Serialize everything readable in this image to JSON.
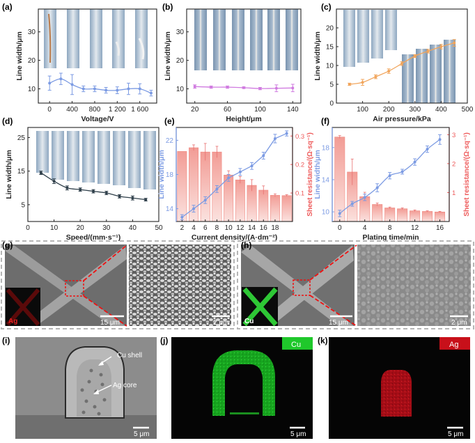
{
  "panels": {
    "a": {
      "label": "(a)"
    },
    "b": {
      "label": "(b)"
    },
    "c": {
      "label": "(c)"
    },
    "d": {
      "label": "(d)"
    },
    "e": {
      "label": "(e)"
    },
    "f": {
      "label": "(f)"
    },
    "g": {
      "label": "(g)",
      "element_tag": "Ag",
      "scale1": "15 μm",
      "scale2": "2 μm"
    },
    "h": {
      "label": "(h)",
      "element_tag": "Cu",
      "scale1": "15 μm",
      "scale2": "2 μm"
    },
    "i": {
      "label": "(i)",
      "cu_shell": "Cu shell",
      "ag_core": "Ag core",
      "scale": "5 μm"
    },
    "j": {
      "label": "(j)",
      "tag": "Cu",
      "scale": "5 μm"
    },
    "k": {
      "label": "(k)",
      "tag": "Ag",
      "scale": "5 μm"
    }
  },
  "colors": {
    "cu_green": "#1fc82b",
    "ag_red": "#c8101a",
    "blue_series": "#7c9be3",
    "red_axis": "#ee5a5a",
    "bar_fill": "#f5b2ac",
    "purple_series": "#d07be0",
    "orange_series": "#f1a55c",
    "dark_series": "#2f3f4a"
  },
  "chart_data": [
    {
      "id": "a",
      "type": "line",
      "xlabel": "Voltage/V",
      "ylabel": "Line width/μm",
      "xlim": [
        -200,
        1900
      ],
      "ylim": [
        5,
        38
      ],
      "xticks": [
        0,
        400,
        800,
        1200,
        1600
      ],
      "xtick_labels": [
        "0",
        "400",
        "800",
        "1 200",
        "1 600"
      ],
      "yticks": [
        10,
        20,
        30
      ],
      "x": [
        0,
        200,
        400,
        600,
        800,
        1000,
        1200,
        1400,
        1600,
        1800
      ],
      "values": [
        12.0,
        13.5,
        11.5,
        10.0,
        10.0,
        9.5,
        9.5,
        10.0,
        10.0,
        8.5
      ],
      "errors": [
        2.5,
        2.0,
        3.5,
        1.0,
        1.0,
        1.0,
        1.2,
        2.0,
        1.8,
        1.0
      ]
    },
    {
      "id": "b",
      "type": "line",
      "xlabel": "Height/μm",
      "ylabel": "Line width/μm",
      "xlim": [
        10,
        150
      ],
      "ylim": [
        5,
        38
      ],
      "xticks": [
        20,
        60,
        100,
        140
      ],
      "xtick_labels": [
        "20",
        "60",
        "100",
        "140"
      ],
      "yticks": [
        10,
        20,
        30
      ],
      "x": [
        20,
        40,
        60,
        80,
        100,
        120,
        140
      ],
      "values": [
        10.8,
        10.6,
        10.6,
        10.4,
        10.1,
        10.2,
        10.3
      ],
      "errors": [
        0.6,
        0.4,
        0.4,
        0.3,
        0.4,
        1.2,
        1.3
      ]
    },
    {
      "id": "c",
      "type": "line",
      "xlabel": "Air pressure/kPa",
      "ylabel": "Line width/μm",
      "xlim": [
        0,
        500
      ],
      "ylim": [
        0,
        25
      ],
      "xticks": [
        100,
        200,
        300,
        400,
        500
      ],
      "xtick_labels": [
        "100",
        "200",
        "300",
        "400",
        "500"
      ],
      "yticks": [
        0,
        5,
        10,
        15,
        20
      ],
      "x": [
        50,
        100,
        150,
        200,
        250,
        300,
        350,
        400,
        450
      ],
      "values": [
        5.0,
        5.5,
        7.0,
        8.5,
        10.5,
        12.5,
        13.8,
        15.0,
        16.0
      ],
      "errors": [
        0.3,
        0.8,
        0.5,
        0.6,
        0.5,
        0.4,
        0.5,
        0.6,
        0.9
      ]
    },
    {
      "id": "d",
      "type": "line",
      "xlabel": "Speed/(mm·s⁻¹)",
      "ylabel": "Line width/μm",
      "xlim": [
        0,
        50
      ],
      "ylim": [
        0,
        28
      ],
      "xticks": [
        0,
        10,
        20,
        30,
        40,
        50
      ],
      "xtick_labels": [
        "0",
        "10",
        "20",
        "30",
        "40",
        "50"
      ],
      "yticks": [
        5,
        15,
        25
      ],
      "x": [
        5,
        10,
        15,
        20,
        25,
        30,
        35,
        40,
        45
      ],
      "values": [
        14.5,
        12.0,
        10.0,
        9.5,
        9.0,
        8.5,
        7.5,
        7.0,
        6.5
      ],
      "errors": [
        0.5,
        0.7,
        0.6,
        0.5,
        0.5,
        0.5,
        0.5,
        0.6,
        0.4
      ]
    },
    {
      "id": "e",
      "type": "bar+line",
      "xlabel": "Current density/(A·dm⁻²)",
      "ylabel": "Line width/μm",
      "y2label": "Sheet resistance/(Ω·sq⁻¹)",
      "xlim": [
        1,
        21
      ],
      "ylim": [
        12.5,
        23.5
      ],
      "y2lim": [
        0,
        0.33
      ],
      "xticks": [
        2,
        4,
        6,
        8,
        10,
        12,
        14,
        16,
        18
      ],
      "xtick_labels": [
        "2",
        "4",
        "6",
        "8",
        "10",
        "12",
        "14",
        "16",
        "18"
      ],
      "yticks": [
        14,
        18,
        22
      ],
      "y2ticks": [
        0.1,
        0.2,
        0.3
      ],
      "x": [
        2,
        4,
        6,
        8,
        10,
        12,
        14,
        16,
        18,
        20
      ],
      "values": [
        13.0,
        14.0,
        15.0,
        16.3,
        17.6,
        18.3,
        19.0,
        20.2,
        22.2,
        22.8
      ],
      "errors": [
        0.3,
        0.4,
        0.4,
        0.4,
        0.4,
        0.4,
        0.4,
        0.4,
        0.5,
        0.3
      ],
      "bars": [
        0.246,
        0.259,
        0.244,
        0.244,
        0.163,
        0.146,
        0.127,
        0.11,
        0.092,
        0.091
      ],
      "bar_errors": [
        0.0,
        0.01,
        0.03,
        0.02,
        0.015,
        0.012,
        0.02,
        0.015,
        0.005,
        0.003
      ]
    },
    {
      "id": "f",
      "type": "bar+line",
      "xlabel": "Plating time/min",
      "ylabel": "Line width/μm",
      "y2label": "Sheet resistance/(Ω·sq⁻¹)",
      "xlim": [
        -1.2,
        17.5
      ],
      "ylim": [
        8.8,
        20.5
      ],
      "y2lim": [
        0,
        3.25
      ],
      "xticks": [
        0,
        4,
        8,
        12,
        16
      ],
      "xtick_labels": [
        "0",
        "4",
        "8",
        "12",
        "16"
      ],
      "yticks": [
        10,
        14,
        18
      ],
      "y2ticks": [
        1,
        2,
        3
      ],
      "x": [
        0,
        2,
        4,
        6,
        8,
        10,
        12,
        14,
        16
      ],
      "values": [
        9.8,
        11.0,
        11.8,
        13.0,
        14.5,
        15.0,
        16.2,
        17.8,
        19.0
      ],
      "errors": [
        0.4,
        0.3,
        0.4,
        0.5,
        0.4,
        0.3,
        0.4,
        0.4,
        0.6
      ],
      "bars": [
        2.92,
        1.71,
        0.86,
        0.59,
        0.47,
        0.44,
        0.37,
        0.35,
        0.33
      ],
      "bar_errors": [
        0.05,
        0.45,
        0.15,
        0.05,
        0.03,
        0.03,
        0.03,
        0.02,
        0.02
      ]
    }
  ]
}
